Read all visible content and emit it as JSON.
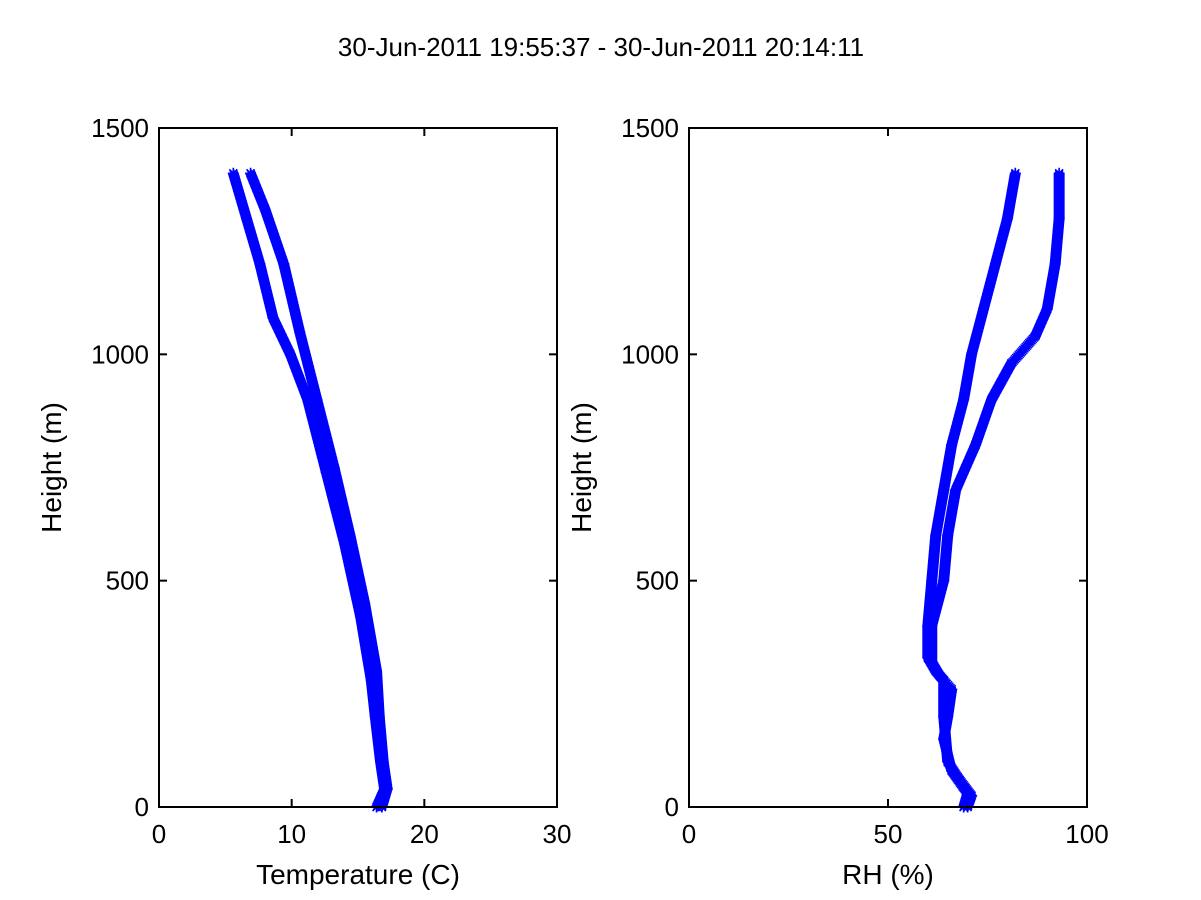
{
  "figure": {
    "title": "30-Jun-2011 19:55:37 - 30-Jun-2011 20:14:11",
    "marker_color": "#0000ff"
  },
  "chart_data": [
    {
      "type": "scatter",
      "marker": "asterisk",
      "xlabel": "Temperature (C)",
      "ylabel": "Height (m)",
      "xlim": [
        0,
        30
      ],
      "ylim": [
        0,
        1500
      ],
      "xticks": [
        "0",
        "10",
        "20",
        "30"
      ],
      "yticks": [
        "0",
        "500",
        "1000",
        "1500"
      ],
      "grid": false,
      "series": [
        {
          "points": [
            [
              16.8,
              0
            ],
            [
              17.2,
              40
            ],
            [
              16.9,
              100
            ],
            [
              16.6,
              200
            ],
            [
              16.4,
              300
            ],
            [
              15.5,
              450
            ],
            [
              14.4,
              600
            ],
            [
              13.2,
              750
            ],
            [
              11.9,
              900
            ],
            [
              10.6,
              1050
            ],
            [
              9.4,
              1200
            ],
            [
              8.0,
              1320
            ],
            [
              6.9,
              1400
            ]
          ]
        },
        {
          "points": [
            [
              16.4,
              0
            ],
            [
              17.0,
              40
            ],
            [
              16.7,
              100
            ],
            [
              16.3,
              200
            ],
            [
              16.0,
              280
            ],
            [
              15.2,
              420
            ],
            [
              14.0,
              580
            ],
            [
              12.6,
              740
            ],
            [
              11.2,
              900
            ],
            [
              9.9,
              1000
            ],
            [
              8.6,
              1080
            ],
            [
              7.6,
              1200
            ],
            [
              6.6,
              1300
            ],
            [
              5.6,
              1400
            ]
          ]
        }
      ]
    },
    {
      "type": "scatter",
      "marker": "asterisk",
      "xlabel": "RH (%)",
      "ylabel": "Height (m)",
      "xlim": [
        0,
        100
      ],
      "ylim": [
        0,
        1500
      ],
      "xticks": [
        "0",
        "50",
        "100"
      ],
      "yticks": [
        "0",
        "500",
        "1000",
        "1500"
      ],
      "grid": false,
      "series": [
        {
          "points": [
            [
              70,
              0
            ],
            [
              71,
              25
            ],
            [
              68,
              60
            ],
            [
              65,
              100
            ],
            [
              64,
              200
            ],
            [
              64,
              280
            ],
            [
              62,
              300
            ],
            [
              60,
              330
            ],
            [
              60,
              400
            ],
            [
              61,
              500
            ],
            [
              62,
              600
            ],
            [
              64,
              700
            ],
            [
              66,
              800
            ],
            [
              69,
              900
            ],
            [
              71,
              1000
            ],
            [
              74,
              1100
            ],
            [
              77,
              1200
            ],
            [
              80,
              1300
            ],
            [
              82,
              1400
            ]
          ]
        },
        {
          "points": [
            [
              69,
              0
            ],
            [
              70,
              30
            ],
            [
              66,
              80
            ],
            [
              64,
              150
            ],
            [
              65,
              200
            ],
            [
              66,
              260
            ],
            [
              63,
              290
            ],
            [
              61,
              320
            ],
            [
              61,
              400
            ],
            [
              64,
              500
            ],
            [
              65,
              600
            ],
            [
              67,
              700
            ],
            [
              72,
              800
            ],
            [
              76,
              900
            ],
            [
              81,
              980
            ],
            [
              87,
              1040
            ],
            [
              90,
              1100
            ],
            [
              92,
              1200
            ],
            [
              93,
              1300
            ],
            [
              93,
              1400
            ]
          ]
        }
      ]
    }
  ]
}
